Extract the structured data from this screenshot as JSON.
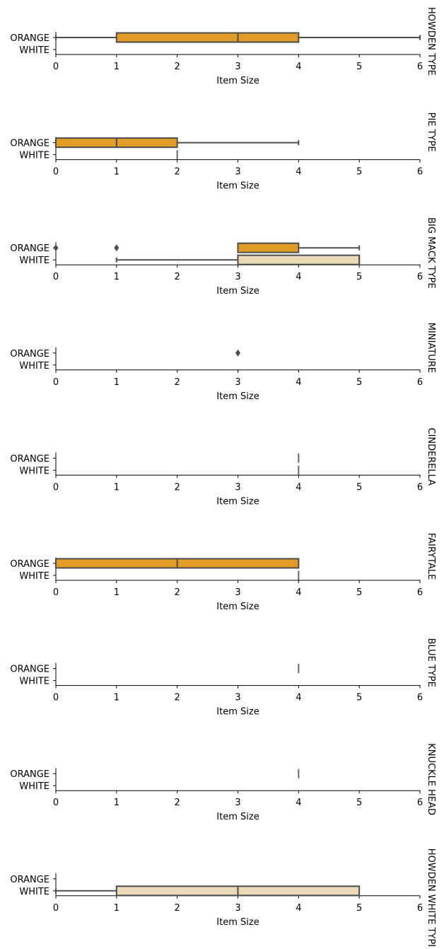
{
  "chart_data": {
    "type": "boxplot",
    "orientation": "horizontal",
    "xlabel": "Item Size",
    "xlim": [
      0,
      6
    ],
    "xticks": [
      0,
      1,
      2,
      3,
      4,
      5,
      6
    ],
    "categories": [
      "ORANGE",
      "WHITE"
    ],
    "colors": {
      "ORANGE": "#e09c24",
      "WHITE": "#ebdab7",
      "line": "#4d4d4d"
    },
    "grid": false,
    "panels": [
      {
        "title": "HOWDEN TYPE",
        "boxes": {
          "ORANGE": {
            "q1": 1,
            "median": 3,
            "q3": 4,
            "whisker_low": 0,
            "whisker_high": 6,
            "outliers": []
          },
          "WHITE": null
        }
      },
      {
        "title": "PIE TYPE",
        "boxes": {
          "ORANGE": {
            "q1": 0,
            "median": 1,
            "q3": 2,
            "whisker_low": 0,
            "whisker_high": 4,
            "outliers": []
          },
          "WHITE": {
            "q1": 2,
            "median": 2,
            "q3": 2,
            "whisker_low": 2,
            "whisker_high": 2,
            "outliers": []
          }
        }
      },
      {
        "title": "BIG MACK TYPE",
        "boxes": {
          "ORANGE": {
            "q1": 3,
            "median": 3,
            "q3": 4,
            "whisker_low": 3,
            "whisker_high": 5,
            "outliers": [
              0,
              1
            ]
          },
          "WHITE": {
            "q1": 3,
            "median": 5,
            "q3": 5,
            "whisker_low": 1,
            "whisker_high": 5,
            "outliers": []
          }
        }
      },
      {
        "title": "MINIATURE",
        "boxes": {
          "ORANGE": {
            "q1": null,
            "median": null,
            "q3": null,
            "whisker_low": null,
            "whisker_high": null,
            "outliers": [
              3
            ]
          },
          "WHITE": null
        }
      },
      {
        "title": "CINDERELLA",
        "boxes": {
          "ORANGE": {
            "q1": 4,
            "median": 4,
            "q3": 4,
            "whisker_low": 4,
            "whisker_high": 4,
            "outliers": []
          },
          "WHITE": {
            "q1": 4,
            "median": 4,
            "q3": 4,
            "whisker_low": 4,
            "whisker_high": 4,
            "outliers": []
          }
        }
      },
      {
        "title": "FAIRYTALE",
        "boxes": {
          "ORANGE": {
            "q1": 0,
            "median": 2,
            "q3": 4,
            "whisker_low": 0,
            "whisker_high": 4,
            "outliers": []
          },
          "WHITE": {
            "q1": 4,
            "median": 4,
            "q3": 4,
            "whisker_low": 4,
            "whisker_high": 4,
            "outliers": []
          }
        }
      },
      {
        "title": "BLUE TYPE",
        "boxes": {
          "ORANGE": {
            "q1": 4,
            "median": 4,
            "q3": 4,
            "whisker_low": 4,
            "whisker_high": 4,
            "outliers": []
          },
          "WHITE": null
        }
      },
      {
        "title": "KNUCKLE HEAD",
        "boxes": {
          "ORANGE": {
            "q1": 4,
            "median": 4,
            "q3": 4,
            "whisker_low": 4,
            "whisker_high": 4,
            "outliers": []
          },
          "WHITE": null
        }
      },
      {
        "title": "HOWDEN WHITE TYPE",
        "boxes": {
          "ORANGE": null,
          "WHITE": {
            "q1": 1,
            "median": 3,
            "q3": 5,
            "whisker_low": 0,
            "whisker_high": 5,
            "outliers": []
          }
        }
      }
    ]
  }
}
